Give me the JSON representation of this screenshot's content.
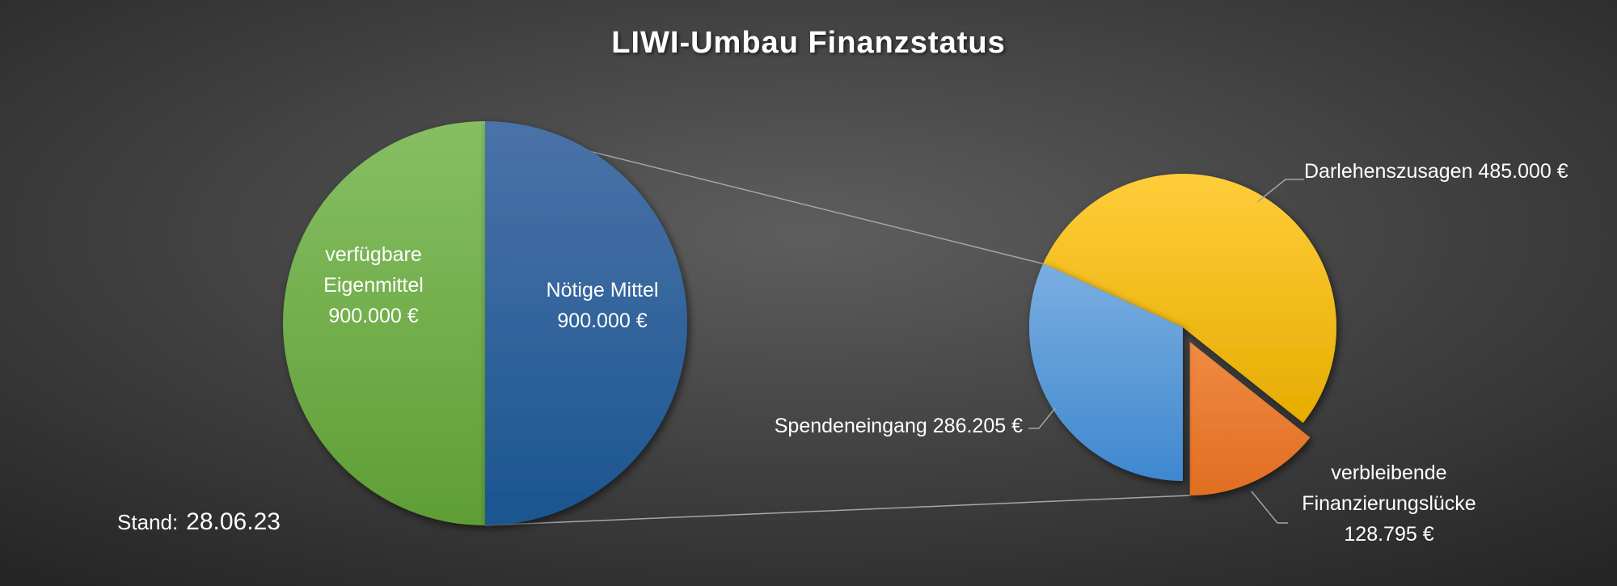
{
  "title": "LIWI-Umbau Finanzstatus",
  "stand": {
    "label": "Stand:",
    "date": "28.06.23"
  },
  "colors": {
    "green": "#70ad47",
    "blue": "#2e5f9e",
    "yellow": "#ffc000",
    "lightblue": "#5b9bd5",
    "orange": "#ed7d31"
  },
  "chart_data": [
    {
      "type": "pie",
      "series": [
        {
          "label_lines": [
            "verfügbare",
            "Eigenmittel",
            "900.000 €"
          ],
          "value": 900000,
          "color": "#70ad47"
        },
        {
          "label_lines": [
            "Nötige Mittel",
            "900.000 €"
          ],
          "value": 900000,
          "color": "#2e5f9e"
        }
      ]
    },
    {
      "type": "pie",
      "series": [
        {
          "label_lines": [
            "Darlehenszusagen  485.000 €"
          ],
          "value": 485000,
          "color": "#ffc000"
        },
        {
          "label_lines": [
            "verbleibende",
            "Finanzierungslücke",
            "128.795 €"
          ],
          "value": 128795,
          "color": "#ed7d31",
          "exploded": true
        },
        {
          "label_lines": [
            "Spendeneingang  286.205 €"
          ],
          "value": 286205,
          "color": "#5b9bd5"
        }
      ]
    }
  ]
}
